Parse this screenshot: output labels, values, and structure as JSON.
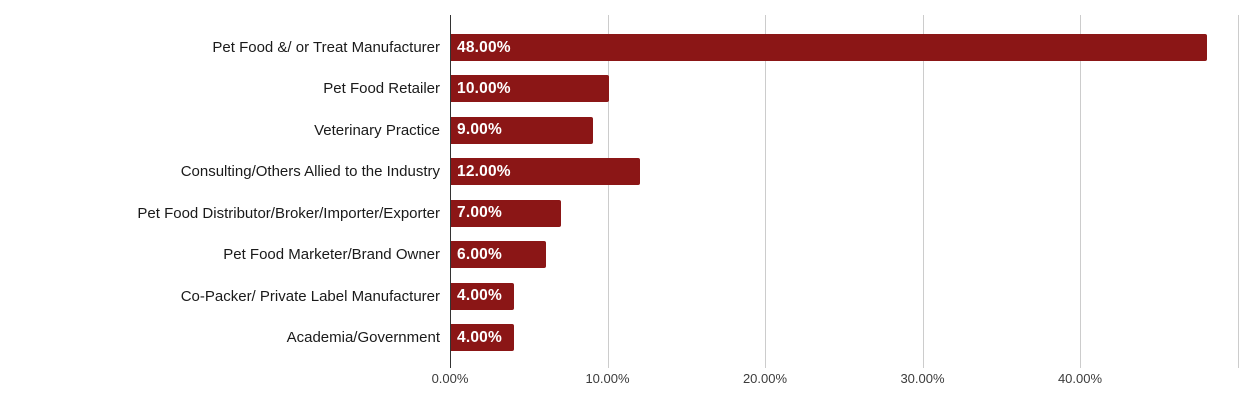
{
  "chart_data": {
    "type": "bar",
    "orientation": "horizontal",
    "title": "",
    "xlabel": "",
    "ylabel": "",
    "categories": [
      "Pet Food &/ or Treat Manufacturer",
      "Pet Food Retailer",
      "Veterinary Practice",
      "Consulting/Others Allied to the Industry",
      "Pet Food Distributor/Broker/Importer/Exporter",
      "Pet Food Marketer/Brand Owner",
      "Co-Packer/ Private Label Manufacturer",
      "Academia/Government"
    ],
    "values": [
      48,
      10,
      9,
      12,
      7,
      6,
      4,
      4
    ],
    "bar_labels": [
      "48.00%",
      "10.00%",
      "9.00%",
      "12.00%",
      "7.00%",
      "6.00%",
      "4.00%",
      "4.00%"
    ],
    "x_ticks": [
      {
        "value": 0,
        "label": "0.00%"
      },
      {
        "value": 10,
        "label": "10.00%"
      },
      {
        "value": 20,
        "label": "20.00%"
      },
      {
        "value": 30,
        "label": "30.00%"
      },
      {
        "value": 40,
        "label": "40.00%"
      },
      {
        "value": 50,
        "label": ""
      }
    ],
    "xlim": [
      0,
      51.24
    ],
    "grid": true,
    "legend": "none",
    "colors": {
      "bar": "#8B1616",
      "bar_label_text": "#ffffff",
      "category_text": "#1a1a1a",
      "tick_text": "#3c3c3c",
      "axis_line": "#333333",
      "gridline": "#cccccc",
      "background": "#ffffff"
    }
  }
}
